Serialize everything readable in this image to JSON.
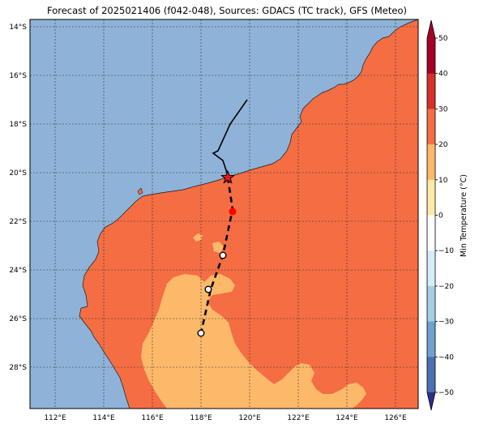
{
  "title": "Forecast of 2025021406 (f042-048), Sources: GDACS (TC track), GFS (Meteo)",
  "map": {
    "lat_ticks": [
      "14°S",
      "16°S",
      "18°S",
      "20°S",
      "22°S",
      "24°S",
      "26°S",
      "28°S"
    ],
    "lon_ticks": [
      "112°E",
      "114°E",
      "116°E",
      "118°E",
      "120°E",
      "122°E",
      "124°E",
      "126°E"
    ],
    "colors": {
      "ocean": "#8fb3d8",
      "land_warm": "#f46d43",
      "land_mild": "#fdb96a"
    }
  },
  "colorbar": {
    "label": "Min Temperature (°C)",
    "ticks": [
      "50",
      "40",
      "30",
      "20",
      "10",
      "0",
      "−10",
      "−20",
      "−30",
      "−40",
      "−50"
    ],
    "colors": [
      "#a50026",
      "#d73027",
      "#f46d43",
      "#fdb96a",
      "#fee9a8",
      "#ffffff",
      "#d6edf5",
      "#a6cfe4",
      "#6ea2cf",
      "#4a6fb3",
      "#2e2f8a"
    ]
  },
  "track": {
    "past_path": [
      [
        119.9,
        17.0
      ],
      [
        119.2,
        18.0
      ],
      [
        118.7,
        19.1
      ],
      [
        118.5,
        19.2
      ],
      [
        118.9,
        19.5
      ],
      [
        119.1,
        20.1
      ]
    ],
    "current_position": [
      119.1,
      20.2
    ],
    "forecast_path": [
      [
        119.1,
        20.2
      ],
      [
        119.3,
        21.5
      ],
      [
        118.9,
        23.4
      ],
      [
        118.4,
        24.8
      ],
      [
        118.0,
        26.6
      ]
    ],
    "forecast_points": [
      [
        118.9,
        23.4
      ],
      [
        118.3,
        24.8
      ],
      [
        118.0,
        26.6
      ]
    ],
    "red_marker": [
      119.3,
      21.6
    ]
  }
}
